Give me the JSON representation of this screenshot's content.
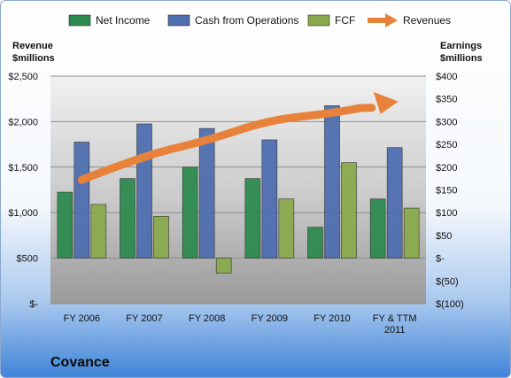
{
  "chart_data": {
    "type": "bar",
    "title": "Covance",
    "categories": [
      "FY 2006",
      "FY 2007",
      "FY 2008",
      "FY 2009",
      "FY 2010",
      "FY & TTM 2011"
    ],
    "series": [
      {
        "name": "Net Income",
        "axis": "right",
        "values": [
          145,
          175,
          200,
          175,
          68,
          130
        ],
        "color": "#2e8b4f"
      },
      {
        "name": "Cash from Operations",
        "axis": "right",
        "values": [
          255,
          295,
          285,
          260,
          335,
          243
        ],
        "color": "#4f6fb0"
      },
      {
        "name": "FCF",
        "axis": "right",
        "values": [
          118,
          92,
          -33,
          130,
          210,
          110
        ],
        "color": "#8aaa4e"
      },
      {
        "name": "Revenues",
        "axis": "left",
        "type": "arrow",
        "values": [
          1360,
          1630,
          1790,
          2020,
          2090,
          2210
        ],
        "color": "#e8823a"
      }
    ],
    "left_axis": {
      "title_lines": [
        "Revenue",
        "$millions"
      ],
      "ticks": [
        "$-",
        "$500",
        "$1,000",
        "$1,500",
        "$2,000",
        "$2,500"
      ],
      "ylim": [
        0,
        2500
      ]
    },
    "right_axis": {
      "title_lines": [
        "Earnings",
        "$millions"
      ],
      "ticks": [
        "$(100)",
        "$(50)",
        "$-",
        "$50",
        "$100",
        "$150",
        "$200",
        "$250",
        "$300",
        "$350",
        "$400"
      ],
      "ylim": [
        -100,
        400
      ]
    },
    "legend": {
      "position": "top",
      "items": [
        {
          "label": "Net Income",
          "color": "#2e8b4f",
          "kind": "box"
        },
        {
          "label": "Cash from Operations",
          "color": "#4f6fb0",
          "kind": "box"
        },
        {
          "label": "FCF",
          "color": "#8aaa4e",
          "kind": "box"
        },
        {
          "label": "Revenues",
          "color": "#e8823a",
          "kind": "arrow"
        }
      ]
    },
    "grid": true
  }
}
